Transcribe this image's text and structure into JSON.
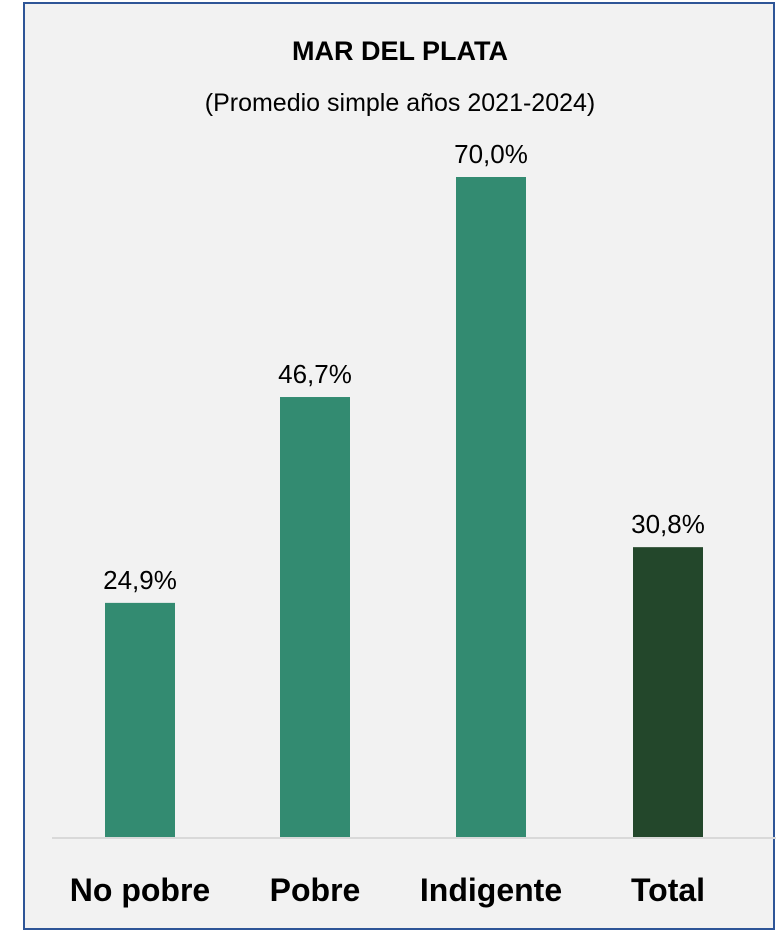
{
  "chart_data": {
    "type": "bar",
    "title": "MAR DEL PLATA",
    "subtitle": "(Promedio simple años 2021-2024)",
    "categories": [
      "No pobre",
      "Pobre",
      "Indigente",
      "Total"
    ],
    "values": [
      24.9,
      46.7,
      70.0,
      30.8
    ],
    "data_labels": [
      "24,9%",
      "46,7%",
      "70,0%",
      "30,8%"
    ],
    "ylim": [
      0,
      73
    ],
    "grid": false,
    "legend": "none",
    "colors": [
      "#338b71",
      "#338b71",
      "#338b71",
      "#23472b"
    ],
    "baseline_color": "#d9d9d9",
    "background": "#f2f2f2",
    "border_color": "#2e5597"
  }
}
